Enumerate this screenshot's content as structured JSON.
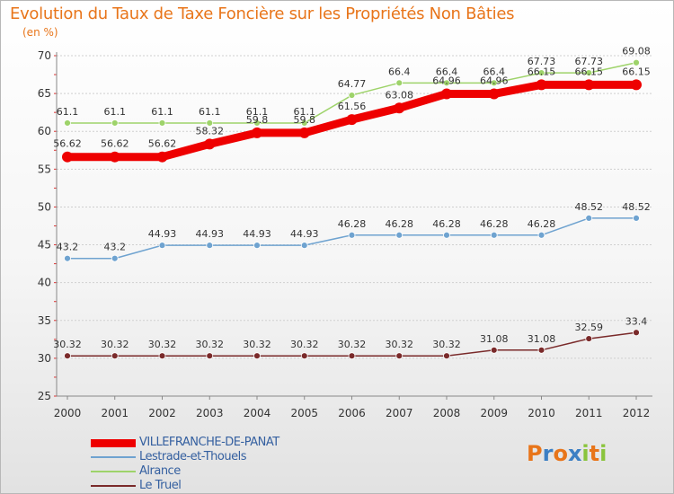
{
  "header": {
    "title": "Evolution du Taux de Taxe Foncière sur les Propriétés Non Bâties",
    "unit": "(en %)"
  },
  "brand": {
    "letters": [
      "P",
      "r",
      "o",
      "x",
      "i",
      "t",
      "i"
    ],
    "colors": [
      "#e8751a",
      "#3c7fc4",
      "#e8751a",
      "#3c7fc4",
      "#8ac43c",
      "#e8751a",
      "#8ac43c"
    ]
  },
  "chart_data": {
    "type": "line",
    "title": "Evolution du Taux de Taxe Foncière sur les Propriétés Non Bâties",
    "ylabel": "(en %)",
    "xlabel": "",
    "x": [
      "2000",
      "2001",
      "2002",
      "2003",
      "2004",
      "2005",
      "2006",
      "2007",
      "2008",
      "2009",
      "2010",
      "2011",
      "2012"
    ],
    "ylim": [
      25,
      70
    ],
    "yticks": [
      25,
      30,
      35,
      40,
      45,
      50,
      55,
      60,
      65,
      70
    ],
    "grid": "horizontal",
    "legend_position": "bottom-left",
    "series": [
      {
        "name": "VILLEFRANCHE-DE-PANAT",
        "color": "#ee0000",
        "values": [
          56.62,
          56.62,
          56.62,
          58.32,
          59.8,
          59.8,
          61.56,
          63.08,
          64.96,
          64.96,
          66.15,
          66.15,
          66.15
        ],
        "labels": [
          "56.62",
          "56.62",
          "56.62",
          "58.32",
          "59.8",
          "59.8",
          "61.56",
          "63.08",
          "64.96",
          "64.96",
          "66.15",
          "66.15",
          "66.15"
        ]
      },
      {
        "name": "Lestrade-et-Thouels",
        "color": "#6fa3d0",
        "values": [
          43.2,
          43.2,
          44.93,
          44.93,
          44.93,
          44.93,
          46.28,
          46.28,
          46.28,
          46.28,
          46.28,
          48.52,
          48.52
        ],
        "labels": [
          "43.2",
          "43.2",
          "44.93",
          "44.93",
          "44.93",
          "44.93",
          "46.28",
          "46.28",
          "46.28",
          "46.28",
          "46.28",
          "48.52",
          "48.52"
        ]
      },
      {
        "name": "Alrance",
        "color": "#9ed36a",
        "values": [
          61.1,
          61.1,
          61.1,
          61.1,
          61.1,
          61.1,
          64.77,
          66.4,
          66.4,
          66.4,
          67.73,
          67.73,
          69.08
        ],
        "labels": [
          "61.1",
          "61.1",
          "61.1",
          "61.1",
          "61.1",
          "61.1",
          "64.77",
          "66.4",
          "66.4",
          "66.4",
          "67.73",
          "67.73",
          "69.08"
        ]
      },
      {
        "name": "Le Truel",
        "color": "#7a2a2a",
        "values": [
          30.32,
          30.32,
          30.32,
          30.32,
          30.32,
          30.32,
          30.32,
          30.32,
          30.32,
          31.08,
          31.08,
          32.59,
          33.4
        ],
        "labels": [
          "30.32",
          "30.32",
          "30.32",
          "30.32",
          "30.32",
          "30.32",
          "30.32",
          "30.32",
          "30.32",
          "31.08",
          "31.08",
          "32.59",
          "33.4"
        ]
      }
    ]
  }
}
